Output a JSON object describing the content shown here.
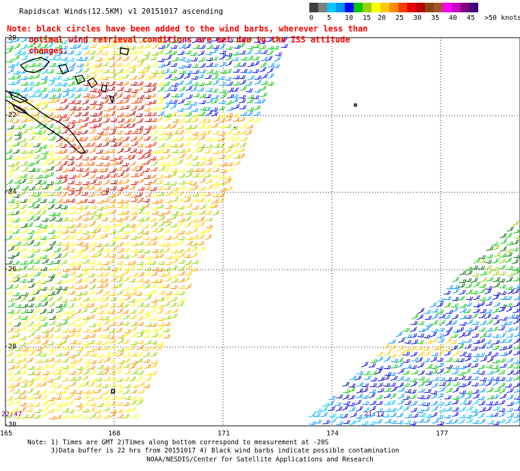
{
  "title": "Rapidscat Winds(12.5KM) v1 20151017 ascending",
  "note_line1": "Note: black circles have been added to the wind barbs, wherever less than",
  "note_line2": "optimal wind retrieval conditions are met due to the ISS attitude changes.",
  "colorbar": {
    "colors": [
      "#404040",
      "#7f7f7f",
      "#00c8ff",
      "#0096ff",
      "#0000ff",
      "#00c800",
      "#96d200",
      "#ffff00",
      "#ffc800",
      "#ff8c00",
      "#ff3c00",
      "#e60000",
      "#b40000",
      "#8b4513",
      "#a0522d",
      "#ff00ff",
      "#c800c8",
      "#800080",
      "#400080"
    ],
    "labels": [
      "0",
      "5",
      "10",
      "15",
      "20",
      "25",
      "30",
      "35",
      "40",
      "45",
      ">50 knots"
    ]
  },
  "lat_labels": [
    "-20",
    "-22",
    "-24",
    "-26",
    "-28",
    "-30"
  ],
  "lon_labels": [
    "165",
    "168",
    "171",
    "174",
    "177"
  ],
  "time_labels": [
    "22:47",
    "21:12"
  ],
  "footer_line1": "Note: 1) Times are GMT 2)Times along bottom correspond to measurement at -20S",
  "footer_line2": "      3)Data buffer is 22 hrs from 20151017 4) Black wind barbs indicate possible contamination",
  "credit": "NOAA/NESDIS/Center for Satellite Applications and Research"
}
